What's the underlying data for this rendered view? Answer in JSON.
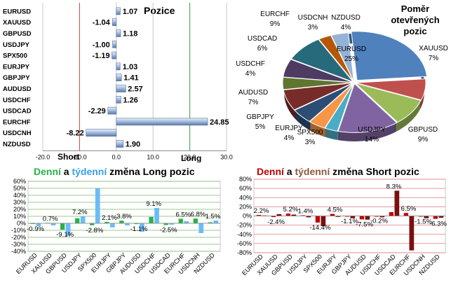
{
  "colors": {
    "bar_fill": "#b9cde5",
    "bar_edge": "#4f6fa0",
    "long_daily": "#2ab04a",
    "long_weekly": "#4aaaf0",
    "short_daily": "#c00000",
    "short_weekly": "#7a1010",
    "short_title_weekly": "#8b5a3c",
    "grid_green": "#7ab86a",
    "grid_red": "#e07a7a"
  },
  "chart_data": [
    {
      "type": "bar",
      "orientation": "horizontal",
      "title": "Pozice",
      "categories": [
        "EURUSD",
        "XAUUSD",
        "GBPUSD",
        "USDJPY",
        "SPX500",
        "EURJPY",
        "GBPJPY",
        "AUDUSD",
        "USDCHF",
        "USDCAD",
        "EURCHF",
        "USDCNH",
        "NZDUSD"
      ],
      "values": [
        1.07,
        -1.04,
        1.18,
        -1.0,
        -1.19,
        1.03,
        1.41,
        2.57,
        1.26,
        -2.29,
        24.85,
        -8.22,
        1.9
      ],
      "labels": [
        "1.07",
        "-1.04",
        "1.18",
        "-1.00",
        "-1.19",
        "1.03",
        "1.41",
        "2.57",
        "1.26",
        "-2.29",
        "24.85",
        "-8.22",
        "1.90"
      ],
      "xlim": [
        -20,
        30
      ],
      "xticks": [
        "-20.0",
        "-10.0",
        "0.0",
        "10.0",
        "20.0",
        "30.0"
      ],
      "short_label": "Short",
      "long_label": "Long"
    },
    {
      "type": "pie",
      "title": "Poměr otevřených pozic",
      "title_lines": [
        "Poměr",
        "otevřených",
        "pozic"
      ],
      "slices": [
        {
          "name": "EURUSD",
          "value": 25,
          "label": "25%",
          "color": "#4f81bd"
        },
        {
          "name": "XAUUSD",
          "value": 7,
          "label": "7%",
          "color": "#c0504d"
        },
        {
          "name": "GBPUSD",
          "value": 9,
          "label": "9%",
          "color": "#9bbb59"
        },
        {
          "name": "USDJPY",
          "value": 14,
          "label": "14%",
          "color": "#8064a2"
        },
        {
          "name": "SPX500",
          "value": 3,
          "label": "3%",
          "color": "#4bacc6"
        },
        {
          "name": "EURJPY",
          "value": 4,
          "label": "4%",
          "color": "#f79646"
        },
        {
          "name": "GBPJPY",
          "value": 5,
          "label": "5%",
          "color": "#2c4d75"
        },
        {
          "name": "AUDUSD",
          "value": 7,
          "label": "7%",
          "color": "#772c2a"
        },
        {
          "name": "USDCHF",
          "value": 4,
          "label": "4%",
          "color": "#5f7530"
        },
        {
          "name": "USDCAD",
          "value": 6,
          "label": "6%",
          "color": "#4d3b62"
        },
        {
          "name": "EURCHF",
          "value": 9,
          "label": "9%",
          "color": "#276a7c"
        },
        {
          "name": "USDCNH",
          "value": 3,
          "label": "3%",
          "color": "#b65708"
        },
        {
          "name": "NZDUSD",
          "value": 4,
          "label": "4%",
          "color": "#95b3d7"
        }
      ]
    },
    {
      "type": "bar",
      "title_parts": [
        "Denní",
        " a ",
        "týdenní",
        " změna Long pozic"
      ],
      "categories": [
        "EURUSD",
        "XAUUSD",
        "GBPUSD",
        "USDJPY",
        "SPX500",
        "EURJPY",
        "GBPJPY",
        "AUDUSD",
        "USDCHF",
        "USDCAD",
        "EURCHF",
        "USDCNH",
        "NZDUSD"
      ],
      "series": [
        {
          "name": "Denní",
          "values": [
            -0.9,
            0.7,
            -9.1,
            7.2,
            -2.8,
            2.1,
            3.8,
            -1.1,
            9.1,
            -2.5,
            6.5,
            6.8,
            1.5
          ]
        },
        {
          "name": "týdenní",
          "values": [
            -4,
            -3,
            -18,
            10,
            50,
            -6,
            -3,
            -12,
            22,
            -2,
            3,
            -14,
            4
          ]
        }
      ],
      "data_labels": [
        "-0.9%",
        "0.7%",
        "-9.1%",
        "7.2%",
        "-2.8%",
        "2.1%",
        "3.8%",
        "-1.1%",
        "9.1%",
        "-2.5%",
        "6.5%",
        "6.8%",
        "1.5%"
      ],
      "ylim": [
        -40,
        60
      ],
      "yticks": [
        "60%",
        "50%",
        "40%",
        "30%",
        "20%",
        "10%",
        "0%",
        "-10%",
        "-20%",
        "-30%",
        "-40%"
      ]
    },
    {
      "type": "bar",
      "title_parts": [
        "Denní",
        " a ",
        "týdenní",
        " změna Short pozic"
      ],
      "categories": [
        "EURUSD",
        "XAUUSD",
        "GBPUSD",
        "USDJPY",
        "SPX500",
        "EURJPY",
        "GBPJPY",
        "AUDUSD",
        "USDCHF",
        "USDCAD",
        "EURCHF",
        "USDCNH",
        "NZDUSD"
      ],
      "series": [
        {
          "name": "Denní",
          "values": [
            2.2,
            -2.4,
            5.2,
            1.4,
            -14.4,
            4.5,
            -1.1,
            -7.5,
            -0.2,
            8.3,
            6.5,
            -1.5,
            -6.3
          ]
        },
        {
          "name": "týdenní",
          "values": [
            1,
            4,
            3,
            -3,
            -22,
            -2,
            -5,
            -8,
            -3,
            55,
            -75,
            -5,
            -4
          ]
        }
      ],
      "data_labels": [
        "2.2%",
        "-2.4%",
        "5.2%",
        "1.4%",
        "-14.4%",
        "4.5%",
        "-1.1%",
        "-7.5%",
        "-0.2%",
        "8.3%",
        "6.5%",
        "-1.5%",
        "-6.3%"
      ],
      "ylim": [
        -80,
        80
      ],
      "yticks": [
        "80%",
        "60%",
        "40%",
        "20%",
        "0%",
        "-20%",
        "-40%",
        "-60%",
        "-80%"
      ]
    }
  ]
}
